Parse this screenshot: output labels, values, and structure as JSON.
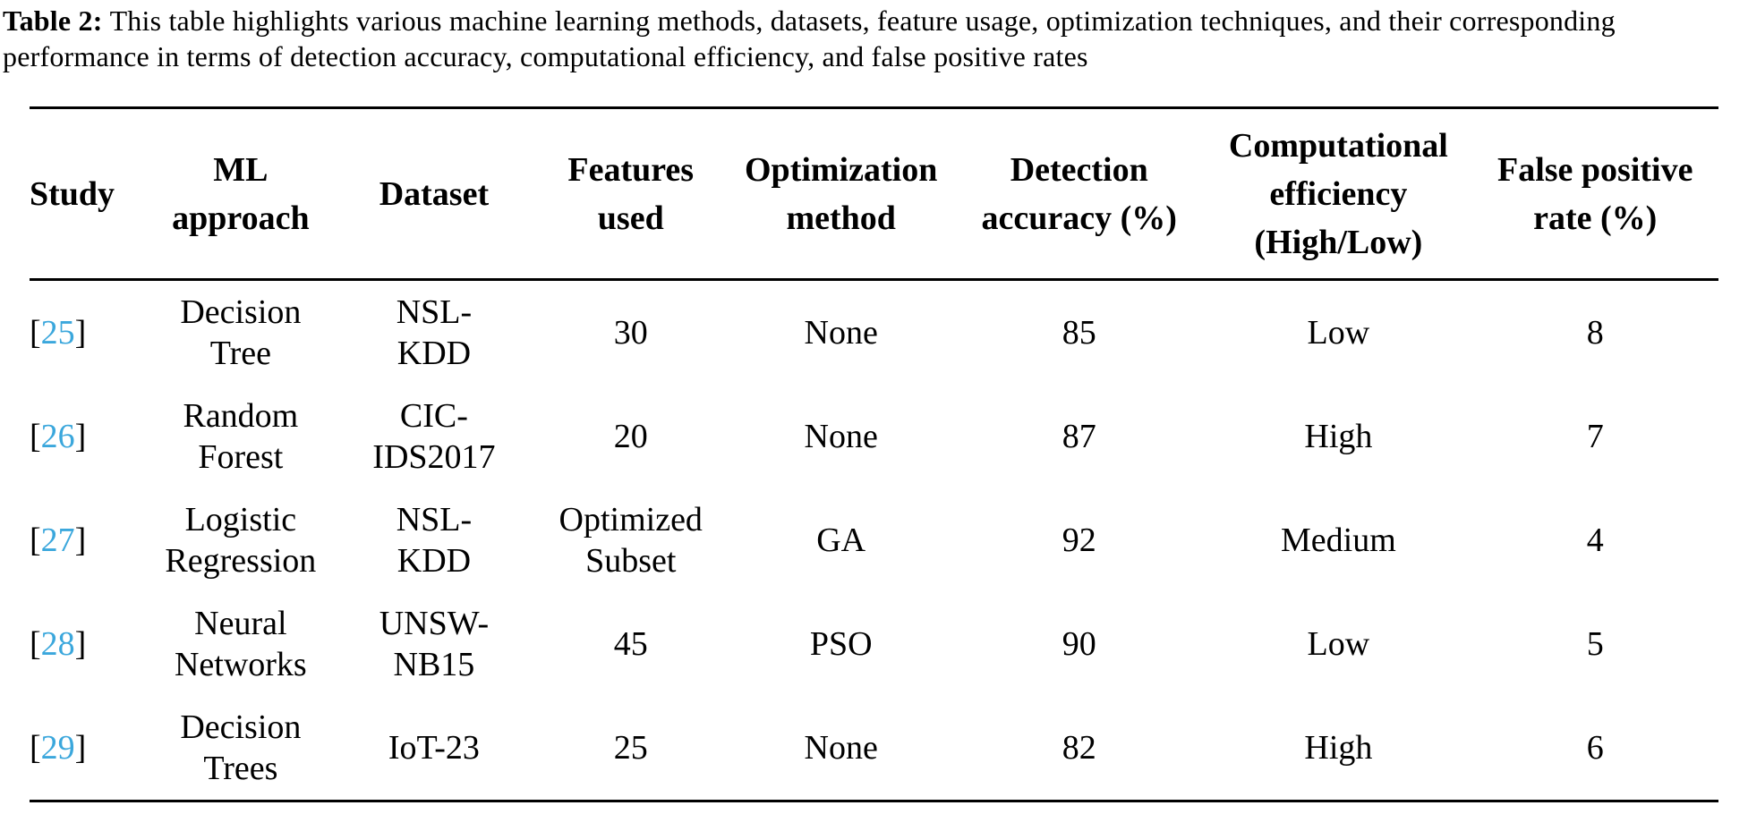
{
  "caption": {
    "label": "Table 2:",
    "text": "This table highlights various machine learning methods, datasets, feature usage, optimization techniques, and their corresponding performance in terms of detection accuracy, computational efficiency, and false positive rates"
  },
  "ui": {
    "bracket_open": "[",
    "bracket_close": "]",
    "citation_color": "#3BA7DC",
    "rule_color": "#000000",
    "background_color": "#ffffff"
  },
  "table": {
    "columns": [
      {
        "key": "study",
        "label": "Study"
      },
      {
        "key": "ml_approach",
        "label": "ML\napproach"
      },
      {
        "key": "dataset",
        "label": "Dataset"
      },
      {
        "key": "features_used",
        "label": "Features\nused"
      },
      {
        "key": "optimization_method",
        "label": "Optimization\nmethod"
      },
      {
        "key": "detection_accuracy",
        "label": "Detection\naccuracy (%)"
      },
      {
        "key": "computational_efficiency",
        "label": "Computational\nefficiency\n(High/Low)"
      },
      {
        "key": "false_positive_rate",
        "label": "False positive\nrate (%)"
      }
    ],
    "rows": [
      {
        "study_num": "25",
        "ml_approach": "Decision\nTree",
        "dataset": "NSL-\nKDD",
        "features_used": "30",
        "optimization_method": "None",
        "detection_accuracy": "85",
        "computational_efficiency": "Low",
        "false_positive_rate": "8"
      },
      {
        "study_num": "26",
        "ml_approach": "Random\nForest",
        "dataset": "CIC-\nIDS2017",
        "features_used": "20",
        "optimization_method": "None",
        "detection_accuracy": "87",
        "computational_efficiency": "High",
        "false_positive_rate": "7"
      },
      {
        "study_num": "27",
        "ml_approach": "Logistic\nRegression",
        "dataset": "NSL-\nKDD",
        "features_used": "Optimized\nSubset",
        "optimization_method": "GA",
        "detection_accuracy": "92",
        "computational_efficiency": "Medium",
        "false_positive_rate": "4"
      },
      {
        "study_num": "28",
        "ml_approach": "Neural\nNetworks",
        "dataset": "UNSW-\nNB15",
        "features_used": "45",
        "optimization_method": "PSO",
        "detection_accuracy": "90",
        "computational_efficiency": "Low",
        "false_positive_rate": "5"
      },
      {
        "study_num": "29",
        "ml_approach": "Decision\nTrees",
        "dataset": "IoT-23",
        "features_used": "25",
        "optimization_method": "None",
        "detection_accuracy": "82",
        "computational_efficiency": "High",
        "false_positive_rate": "6"
      }
    ]
  }
}
